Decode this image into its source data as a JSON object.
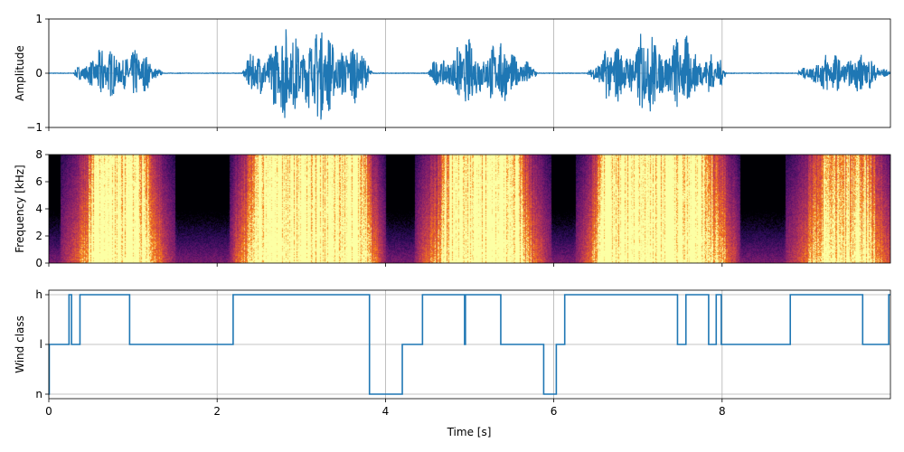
{
  "chart_data": [
    {
      "type": "line",
      "ylabel": "Amplitude",
      "xlim": [
        0,
        10
      ],
      "ylim": [
        -1,
        1
      ],
      "yticks": [
        "−1",
        "0",
        "1"
      ],
      "xticks": [
        0,
        2,
        4,
        6,
        8
      ],
      "grid": true,
      "color": "#1f77b4",
      "signal_bursts": [
        {
          "start": 0.3,
          "end": 1.35,
          "peak": 0.55
        },
        {
          "start": 2.3,
          "end": 3.85,
          "peak": 1.0
        },
        {
          "start": 4.5,
          "end": 5.8,
          "peak": 0.7
        },
        {
          "start": 6.4,
          "end": 8.05,
          "peak": 0.85
        },
        {
          "start": 8.9,
          "end": 10.0,
          "peak": 0.45
        }
      ]
    },
    {
      "type": "heatmap",
      "ylabel": "Frequency [kHz]",
      "xlim": [
        0,
        10
      ],
      "ylim": [
        0,
        8
      ],
      "yticks": [
        "0",
        "2",
        "4",
        "6",
        "8"
      ],
      "colormap": "inferno"
    },
    {
      "type": "line",
      "step": true,
      "ylabel": "Wind class",
      "xlabel": "Time [s]",
      "xlim": [
        0,
        10
      ],
      "categories": [
        "n",
        "l",
        "h"
      ],
      "xticks": [
        "0",
        "2",
        "4",
        "6",
        "8"
      ],
      "grid": true,
      "color": "#1f77b4",
      "steps": [
        [
          0.0,
          "n"
        ],
        [
          0.005,
          "l"
        ],
        [
          0.24,
          "h"
        ],
        [
          0.27,
          "l"
        ],
        [
          0.37,
          "h"
        ],
        [
          0.96,
          "l"
        ],
        [
          2.19,
          "h"
        ],
        [
          3.81,
          "n"
        ],
        [
          4.2,
          "l"
        ],
        [
          4.44,
          "h"
        ],
        [
          4.94,
          "l"
        ],
        [
          4.95,
          "h"
        ],
        [
          5.37,
          "l"
        ],
        [
          5.88,
          "n"
        ],
        [
          6.03,
          "l"
        ],
        [
          6.13,
          "h"
        ],
        [
          7.47,
          "l"
        ],
        [
          7.57,
          "h"
        ],
        [
          7.84,
          "l"
        ],
        [
          7.93,
          "h"
        ],
        [
          7.99,
          "l"
        ],
        [
          8.81,
          "h"
        ],
        [
          9.67,
          "l"
        ],
        [
          9.98,
          "h"
        ],
        [
          10.0,
          "h"
        ]
      ]
    }
  ]
}
